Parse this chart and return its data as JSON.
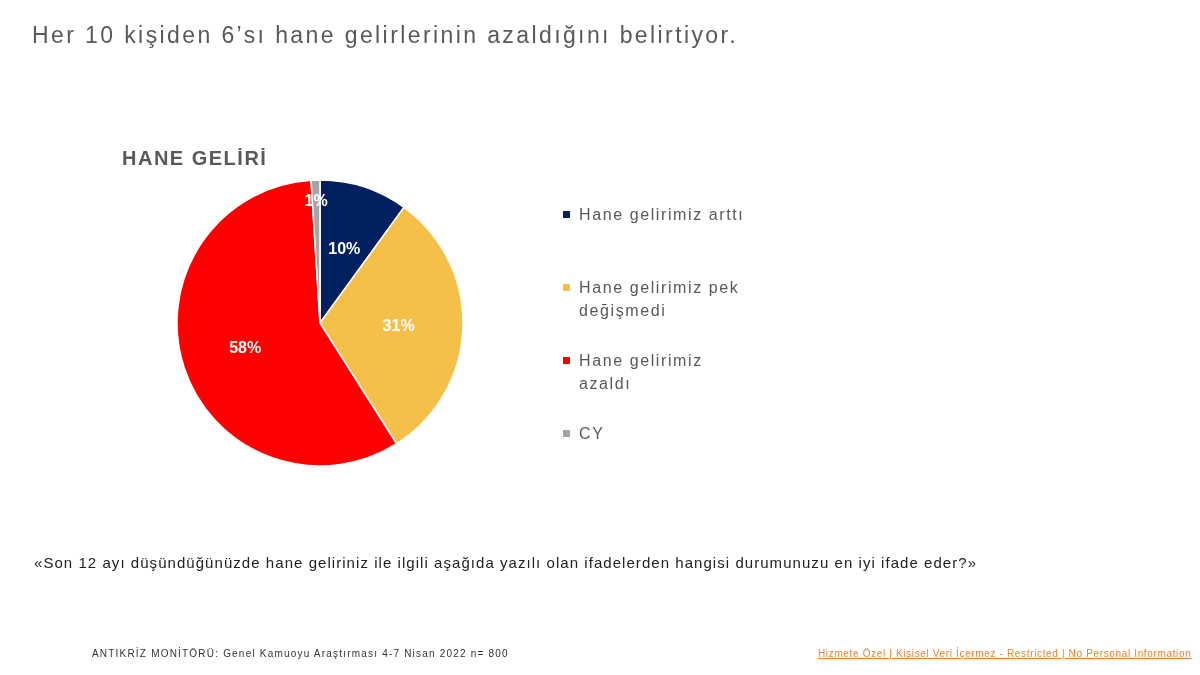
{
  "chart_data": {
    "type": "pie",
    "title": "Her 10 kişiden 6’sı hane gelirlerinin azaldığını belirtiyor.",
    "subtitle": "HANE GELİRİ",
    "categories": [
      "Hane gelirimiz arttı",
      "Hane gelirimiz pek değişmedi",
      "Hane gelirimiz azaldı",
      "CY"
    ],
    "values": [
      10,
      31,
      58,
      1
    ],
    "colors": [
      "#002060",
      "#f5c04a",
      "#ff0000",
      "#a5a5a5"
    ],
    "value_labels": [
      "10%",
      "31%",
      "58%",
      "1%"
    ],
    "legend": "right",
    "annotations": [
      "«Son 12 ayı düşündüğünüzde hane geliriniz ile ilgili aşağıda yazılı olan ifadelerden hangisi durumunuzu en iyi ifade eder?»",
      "ANTIKRİZ MONİTÖRÜ: Genel Kamuoyu Araştırması 4-7 Nisan 2022 n= 800",
      "Hizmete Özel | Kişisel Veri İçermez - Restricted | No Personal Information"
    ]
  }
}
